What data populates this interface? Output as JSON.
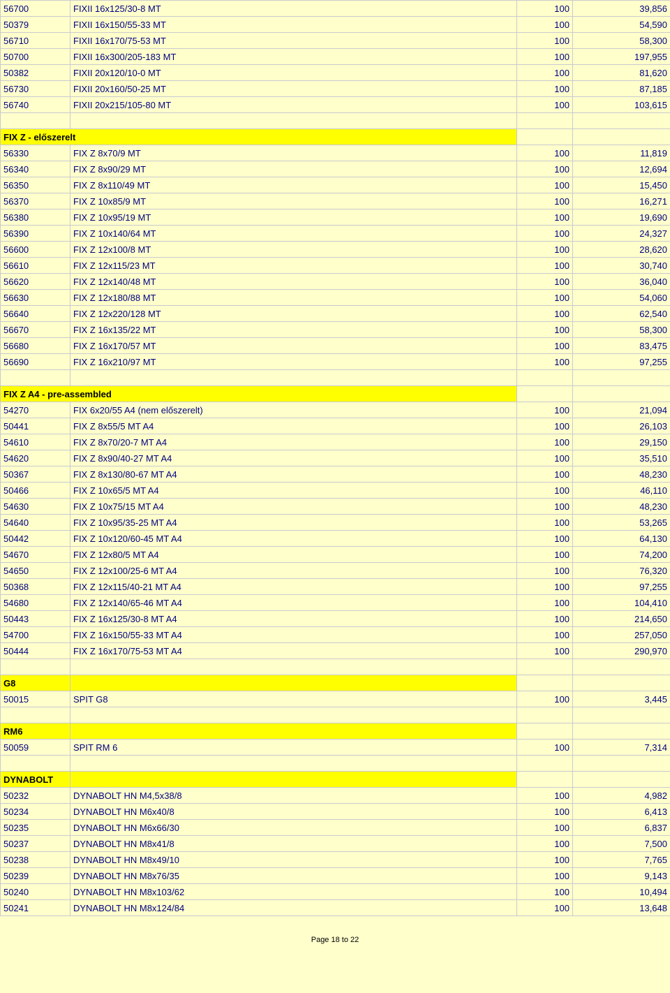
{
  "colors": {
    "page_bg": "#FFFFCC",
    "highlight": "#FFFF00",
    "text": "#000080",
    "border": "#c9c9d0"
  },
  "columns": [
    "code",
    "description",
    "qty",
    "price"
  ],
  "sections": [
    {
      "header": null,
      "rows": [
        {
          "code": "56700",
          "desc": "FIXII 16x125/30-8 MT",
          "qty": "100",
          "price": "39,856"
        },
        {
          "code": "50379",
          "desc": "FIXII 16x150/55-33 MT",
          "qty": "100",
          "price": "54,590"
        },
        {
          "code": "56710",
          "desc": "FIXII 16x170/75-53 MT",
          "qty": "100",
          "price": "58,300"
        },
        {
          "code": "50700",
          "desc": "FIXII 16x300/205-183 MT",
          "qty": "100",
          "price": "197,955"
        },
        {
          "code": "50382",
          "desc": "FIXII 20x120/10-0 MT",
          "qty": "100",
          "price": "81,620"
        },
        {
          "code": "56730",
          "desc": "FIXII 20x160/50-25 MT",
          "qty": "100",
          "price": "87,185"
        },
        {
          "code": "56740",
          "desc": "FIXII 20x215/105-80 MT",
          "qty": "100",
          "price": "103,615"
        }
      ]
    },
    {
      "header": "FIX Z - előszerelt",
      "header_style": "wide",
      "rows": [
        {
          "code": "56330",
          "desc": "FIX Z 8x70/9 MT",
          "qty": "100",
          "price": "11,819"
        },
        {
          "code": "56340",
          "desc": "FIX Z 8x90/29 MT",
          "qty": "100",
          "price": "12,694"
        },
        {
          "code": "56350",
          "desc": "FIX Z 8x110/49 MT",
          "qty": "100",
          "price": "15,450"
        },
        {
          "code": "56370",
          "desc": "FIX Z 10x85/9 MT",
          "qty": "100",
          "price": "16,271"
        },
        {
          "code": "56380",
          "desc": "FIX Z 10x95/19 MT",
          "qty": "100",
          "price": "19,690"
        },
        {
          "code": "56390",
          "desc": "FIX Z 10x140/64 MT",
          "qty": "100",
          "price": "24,327"
        },
        {
          "code": "56600",
          "desc": "FIX Z 12x100/8 MT",
          "qty": "100",
          "price": "28,620"
        },
        {
          "code": "56610",
          "desc": "FIX Z 12x115/23 MT",
          "qty": "100",
          "price": "30,740"
        },
        {
          "code": "56620",
          "desc": "FIX Z 12x140/48 MT",
          "qty": "100",
          "price": "36,040"
        },
        {
          "code": "56630",
          "desc": "FIX Z 12x180/88 MT",
          "qty": "100",
          "price": "54,060"
        },
        {
          "code": "56640",
          "desc": "FIX Z 12x220/128 MT",
          "qty": "100",
          "price": "62,540"
        },
        {
          "code": "56670",
          "desc": "FIX Z 16x135/22 MT",
          "qty": "100",
          "price": "58,300"
        },
        {
          "code": "56680",
          "desc": "FIX Z 16x170/57 MT",
          "qty": "100",
          "price": "83,475"
        },
        {
          "code": "56690",
          "desc": "FIX Z 16x210/97 MT",
          "qty": "100",
          "price": "97,255"
        }
      ]
    },
    {
      "header": "FIX Z A4 - pre-assembled",
      "header_style": "wide",
      "rows": [
        {
          "code": "54270",
          "desc": "FIX  6x20/55 A4  (nem előszerelt)",
          "qty": "100",
          "price": "21,094"
        },
        {
          "code": "50441",
          "desc": "FIX Z 8x55/5 MT  A4",
          "qty": "100",
          "price": "26,103"
        },
        {
          "code": "54610",
          "desc": "FIX Z 8x70/20-7 MT  A4",
          "qty": "100",
          "price": "29,150"
        },
        {
          "code": "54620",
          "desc": "FIX Z 8x90/40-27 MT  A4",
          "qty": "100",
          "price": "35,510"
        },
        {
          "code": "50367",
          "desc": "FIX Z 8x130/80-67 MT  A4",
          "qty": "100",
          "price": "48,230"
        },
        {
          "code": "50466",
          "desc": "FIX Z 10x65/5 MT  A4",
          "qty": "100",
          "price": "46,110"
        },
        {
          "code": "54630",
          "desc": "FIX Z 10x75/15 MT  A4",
          "qty": "100",
          "price": "48,230"
        },
        {
          "code": "54640",
          "desc": "FIX Z 10x95/35-25 MT  A4",
          "qty": "100",
          "price": "53,265"
        },
        {
          "code": "50442",
          "desc": "FIX Z 10x120/60-45 MT  A4",
          "qty": "100",
          "price": "64,130"
        },
        {
          "code": "54670",
          "desc": "FIX Z 12x80/5 MT  A4",
          "qty": "100",
          "price": "74,200"
        },
        {
          "code": "54650",
          "desc": "FIX Z 12x100/25-6 MT  A4",
          "qty": "100",
          "price": "76,320"
        },
        {
          "code": "50368",
          "desc": "FIX Z 12x115/40-21 MT  A4",
          "qty": "100",
          "price": "97,255"
        },
        {
          "code": "54680",
          "desc": "FIX Z 12x140/65-46 MT  A4",
          "qty": "100",
          "price": "104,410"
        },
        {
          "code": "50443",
          "desc": "FIX Z 16x125/30-8 MT  A4",
          "qty": "100",
          "price": "214,650"
        },
        {
          "code": "54700",
          "desc": "FIX Z 16x150/55-33 MT  A4",
          "qty": "100",
          "price": "257,050"
        },
        {
          "code": "50444",
          "desc": "FIX Z 16x170/75-53 MT  A4",
          "qty": "100",
          "price": "290,970"
        }
      ]
    },
    {
      "header": "G8",
      "header_style": "narrow",
      "rows": [
        {
          "code": "50015",
          "desc": "SPIT G8",
          "qty": "100",
          "price": "3,445"
        }
      ]
    },
    {
      "header": "RM6",
      "header_style": "narrow",
      "rows": [
        {
          "code": "50059",
          "desc": "SPIT RM 6",
          "qty": "100",
          "price": "7,314"
        }
      ]
    },
    {
      "header": "DYNABOLT",
      "header_style": "narrow",
      "rows": [
        {
          "code": "50232",
          "desc": "DYNABOLT HN M4,5x38/8",
          "qty": "100",
          "price": "4,982"
        },
        {
          "code": "50234",
          "desc": "DYNABOLT HN M6x40/8",
          "qty": "100",
          "price": "6,413"
        },
        {
          "code": "50235",
          "desc": "DYNABOLT HN M6x66/30",
          "qty": "100",
          "price": "6,837"
        },
        {
          "code": "50237",
          "desc": "DYNABOLT HN M8x41/8",
          "qty": "100",
          "price": "7,500"
        },
        {
          "code": "50238",
          "desc": "DYNABOLT HN M8x49/10",
          "qty": "100",
          "price": "7,765"
        },
        {
          "code": "50239",
          "desc": "DYNABOLT HN M8x76/35",
          "qty": "100",
          "price": "9,143"
        },
        {
          "code": "50240",
          "desc": "DYNABOLT HN M8x103/62",
          "qty": "100",
          "price": "10,494"
        },
        {
          "code": "50241",
          "desc": "DYNABOLT HN M8x124/84",
          "qty": "100",
          "price": "13,648"
        }
      ]
    }
  ],
  "footer": "Page 18 to 22"
}
